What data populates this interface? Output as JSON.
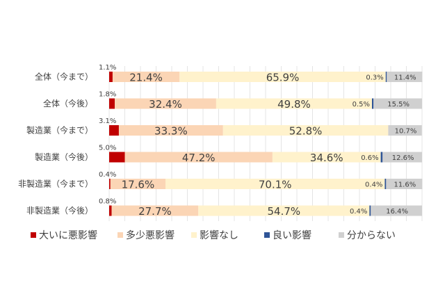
{
  "chart_data": {
    "type": "bar",
    "orientation": "horizontal",
    "stacked": true,
    "percent_stacked": true,
    "categories": [
      "全体（今まで）",
      "全体（今後）",
      "製造業（今まで）",
      "製造業（今後）",
      "非製造業（今まで）",
      "非製造業（今後）"
    ],
    "series": [
      {
        "name": "大いに悪影響",
        "color": "#c00000",
        "values": [
          1.1,
          1.8,
          3.1,
          5.0,
          0.4,
          0.8
        ],
        "labels": [
          "1.1%",
          "1.8%",
          "3.1%",
          "5.0%",
          "0.4%",
          "0.8%"
        ]
      },
      {
        "name": "多少悪影響",
        "color": "#fbd5b5",
        "values": [
          21.4,
          32.4,
          33.3,
          47.2,
          17.6,
          27.7
        ],
        "labels": [
          "21.4%",
          "32.4%",
          "33.3%",
          "47.2%",
          "17.6%",
          "27.7%"
        ]
      },
      {
        "name": "影響なし",
        "color": "#fff2cc",
        "values": [
          65.9,
          49.8,
          52.8,
          34.6,
          70.1,
          54.7
        ],
        "labels": [
          "65.9%",
          "49.8%",
          "52.8%",
          "34.6%",
          "70.1%",
          "54.7%"
        ]
      },
      {
        "name": "良い影響",
        "color": "#2f5597",
        "values": [
          0.3,
          0.5,
          0.0,
          0.6,
          0.4,
          0.4
        ],
        "labels": [
          "0.3%",
          "0.5%",
          "",
          "0.6%",
          "0.4%",
          "0.4%"
        ]
      },
      {
        "name": "分からない",
        "color": "#d0d0d0",
        "values": [
          11.4,
          15.5,
          10.7,
          12.6,
          11.6,
          16.4
        ],
        "labels": [
          "11.4%",
          "15.5%",
          "10.7%",
          "12.6%",
          "11.6%",
          "16.4%"
        ]
      }
    ],
    "xlim": [
      0,
      100
    ],
    "grid": true,
    "legend_position": "bottom"
  }
}
